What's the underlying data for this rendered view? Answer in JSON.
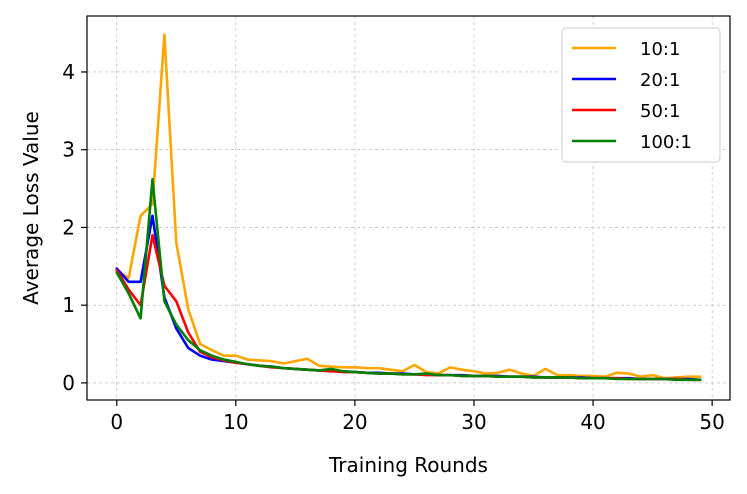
{
  "chart_data": {
    "type": "line",
    "xlabel": "Training Rounds",
    "ylabel": "Average Loss Value",
    "xlim": [
      -2.5,
      51.5
    ],
    "ylim": [
      -0.22,
      4.72
    ],
    "xticks": [
      0,
      10,
      20,
      30,
      40,
      50
    ],
    "yticks": [
      0,
      1,
      2,
      3,
      4
    ],
    "xtick_labels": [
      "0",
      "10",
      "20",
      "30",
      "40",
      "50"
    ],
    "ytick_labels": [
      "0",
      "1",
      "2",
      "3",
      "4"
    ],
    "grid": true,
    "legend_position": "top-right",
    "x": [
      0,
      1,
      2,
      3,
      4,
      5,
      6,
      7,
      8,
      9,
      10,
      11,
      12,
      13,
      14,
      15,
      16,
      17,
      18,
      19,
      20,
      21,
      22,
      23,
      24,
      25,
      26,
      27,
      28,
      29,
      30,
      31,
      32,
      33,
      34,
      35,
      36,
      37,
      38,
      39,
      40,
      41,
      42,
      43,
      44,
      45,
      46,
      47,
      48,
      49
    ],
    "series": [
      {
        "name": "10:1",
        "color": "#FFA500",
        "values": [
          1.45,
          1.35,
          2.15,
          2.3,
          4.48,
          1.8,
          0.95,
          0.5,
          0.42,
          0.35,
          0.35,
          0.3,
          0.29,
          0.28,
          0.25,
          0.28,
          0.31,
          0.22,
          0.21,
          0.2,
          0.2,
          0.19,
          0.19,
          0.17,
          0.15,
          0.23,
          0.14,
          0.12,
          0.2,
          0.17,
          0.15,
          0.12,
          0.13,
          0.17,
          0.12,
          0.09,
          0.18,
          0.1,
          0.1,
          0.09,
          0.09,
          0.08,
          0.13,
          0.12,
          0.08,
          0.1,
          0.06,
          0.07,
          0.08,
          0.08
        ]
      },
      {
        "name": "20:1",
        "color": "#0000FF",
        "values": [
          1.47,
          1.3,
          1.3,
          2.15,
          1.1,
          0.7,
          0.45,
          0.35,
          0.3,
          0.28,
          0.26,
          0.24,
          0.22,
          0.21,
          0.19,
          0.18,
          0.17,
          0.16,
          0.15,
          0.15,
          0.14,
          0.13,
          0.13,
          0.12,
          0.12,
          0.11,
          0.11,
          0.1,
          0.1,
          0.1,
          0.09,
          0.09,
          0.09,
          0.08,
          0.08,
          0.08,
          0.07,
          0.07,
          0.07,
          0.07,
          0.06,
          0.06,
          0.06,
          0.06,
          0.05,
          0.05,
          0.05,
          0.05,
          0.05,
          0.04
        ]
      },
      {
        "name": "50:1",
        "color": "#FF0000",
        "values": [
          1.45,
          1.2,
          1.0,
          1.9,
          1.25,
          1.05,
          0.65,
          0.4,
          0.33,
          0.29,
          0.26,
          0.24,
          0.22,
          0.2,
          0.19,
          0.18,
          0.17,
          0.16,
          0.15,
          0.14,
          0.14,
          0.13,
          0.12,
          0.12,
          0.11,
          0.11,
          0.1,
          0.1,
          0.1,
          0.09,
          0.09,
          0.09,
          0.08,
          0.08,
          0.08,
          0.07,
          0.07,
          0.07,
          0.07,
          0.06,
          0.06,
          0.06,
          0.06,
          0.05,
          0.05,
          0.05,
          0.05,
          0.05,
          0.04,
          0.04
        ]
      },
      {
        "name": "100:1",
        "color": "#008000",
        "values": [
          1.42,
          1.15,
          0.83,
          2.62,
          1.05,
          0.75,
          0.55,
          0.42,
          0.35,
          0.3,
          0.27,
          0.24,
          0.22,
          0.21,
          0.19,
          0.18,
          0.17,
          0.16,
          0.18,
          0.15,
          0.14,
          0.13,
          0.12,
          0.12,
          0.11,
          0.11,
          0.12,
          0.1,
          0.1,
          0.09,
          0.09,
          0.09,
          0.08,
          0.08,
          0.08,
          0.07,
          0.07,
          0.07,
          0.07,
          0.06,
          0.06,
          0.06,
          0.05,
          0.05,
          0.05,
          0.05,
          0.05,
          0.04,
          0.04,
          0.04
        ]
      }
    ]
  }
}
